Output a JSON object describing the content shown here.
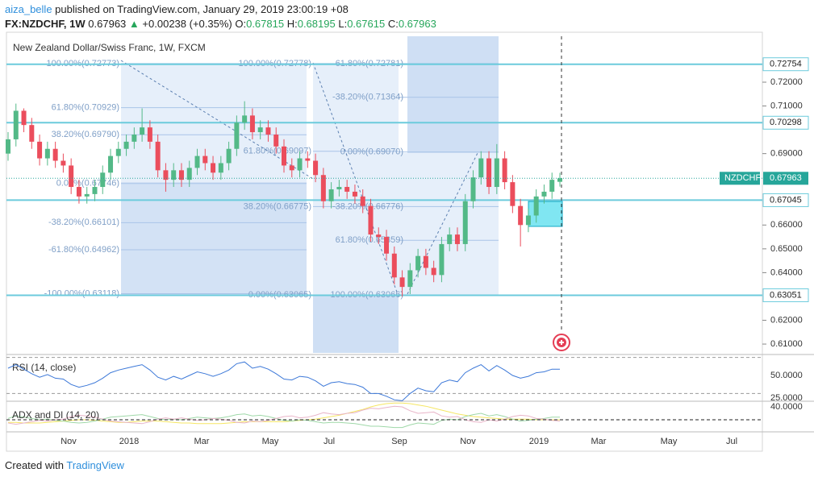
{
  "header": {
    "author": "aiza_belle",
    "published": "published on TradingView.com, January 29, 2019 23:00:19 +08",
    "symbol": "FX:NZDCHF, 1W",
    "last": "0.67963",
    "arrow": "▲",
    "change": "+0.00238 (+0.35%)",
    "ohlc": [
      {
        "key": "O:",
        "value": "0.67815"
      },
      {
        "key": "H:",
        "value": "0.68195"
      },
      {
        "key": "L:",
        "value": "0.67615"
      },
      {
        "key": "C:",
        "value": "0.67963"
      }
    ]
  },
  "footer": {
    "created": "Created with",
    "brand": "TradingView"
  },
  "chart_data": {
    "type": "candlestick",
    "legend": "New Zealand Dollar/Swiss Franc, 1W, FXCM",
    "color_up": "#53b987",
    "color_down": "#eb4d5c",
    "open": [
      0.69,
      0.696,
      0.708,
      0.702,
      0.695,
      0.688,
      0.692,
      0.687,
      0.685,
      0.676,
      0.672,
      0.673,
      0.676,
      0.682,
      0.689,
      0.692,
      0.695,
      0.698,
      0.701,
      0.695,
      0.683,
      0.679,
      0.683,
      0.679,
      0.684,
      0.689,
      0.686,
      0.682,
      0.686,
      0.692,
      0.703,
      0.706,
      0.699,
      0.701,
      0.698,
      0.693,
      0.685,
      0.683,
      0.688,
      0.687,
      0.681,
      0.67,
      0.675,
      0.676,
      0.674,
      0.672,
      0.668,
      0.656,
      0.655,
      0.648,
      0.638,
      0.634,
      0.641,
      0.647,
      0.642,
      0.639,
      0.652,
      0.656,
      0.652,
      0.67,
      0.68,
      0.688,
      0.676,
      0.688,
      0.678,
      0.668,
      0.66,
      0.664,
      0.672,
      0.674,
      0.67815
    ],
    "high": [
      0.699,
      0.711,
      0.709,
      0.705,
      0.698,
      0.695,
      0.695,
      0.69,
      0.688,
      0.679,
      0.676,
      0.679,
      0.685,
      0.692,
      0.695,
      0.698,
      0.701,
      0.709,
      0.704,
      0.698,
      0.686,
      0.686,
      0.686,
      0.687,
      0.692,
      0.692,
      0.689,
      0.689,
      0.695,
      0.706,
      0.712,
      0.709,
      0.704,
      0.704,
      0.701,
      0.696,
      0.688,
      0.691,
      0.691,
      0.69,
      0.684,
      0.678,
      0.679,
      0.679,
      0.677,
      0.675,
      0.671,
      0.659,
      0.658,
      0.651,
      0.641,
      0.644,
      0.65,
      0.65,
      0.645,
      0.655,
      0.659,
      0.659,
      0.673,
      0.683,
      0.691,
      0.691,
      0.694,
      0.691,
      0.681,
      0.671,
      0.667,
      0.675,
      0.677,
      0.682,
      0.68195
    ],
    "low": [
      0.687,
      0.693,
      0.699,
      0.692,
      0.685,
      0.685,
      0.684,
      0.682,
      0.673,
      0.669,
      0.669,
      0.67,
      0.673,
      0.679,
      0.686,
      0.689,
      0.692,
      0.695,
      0.692,
      0.68,
      0.674,
      0.676,
      0.676,
      0.676,
      0.681,
      0.683,
      0.679,
      0.679,
      0.683,
      0.689,
      0.7,
      0.696,
      0.696,
      0.695,
      0.69,
      0.682,
      0.68,
      0.68,
      0.684,
      0.678,
      0.667,
      0.667,
      0.672,
      0.671,
      0.669,
      0.665,
      0.653,
      0.652,
      0.645,
      0.635,
      0.63,
      0.631,
      0.638,
      0.639,
      0.636,
      0.636,
      0.649,
      0.649,
      0.649,
      0.667,
      0.677,
      0.673,
      0.673,
      0.675,
      0.665,
      0.651,
      0.657,
      0.661,
      0.669,
      0.671,
      0.67615
    ],
    "close": [
      0.696,
      0.708,
      0.702,
      0.695,
      0.688,
      0.692,
      0.687,
      0.685,
      0.676,
      0.672,
      0.673,
      0.676,
      0.682,
      0.689,
      0.692,
      0.695,
      0.698,
      0.701,
      0.695,
      0.683,
      0.679,
      0.683,
      0.679,
      0.684,
      0.689,
      0.686,
      0.682,
      0.686,
      0.692,
      0.703,
      0.706,
      0.699,
      0.701,
      0.698,
      0.693,
      0.685,
      0.683,
      0.688,
      0.687,
      0.681,
      0.67,
      0.675,
      0.676,
      0.674,
      0.672,
      0.668,
      0.656,
      0.655,
      0.648,
      0.638,
      0.634,
      0.641,
      0.647,
      0.642,
      0.639,
      0.652,
      0.656,
      0.652,
      0.67,
      0.68,
      0.688,
      0.676,
      0.688,
      0.678,
      0.668,
      0.66,
      0.664,
      0.672,
      0.674,
      0.679,
      0.67963
    ],
    "yticks": [
      {
        "value": 0.61,
        "label": "0.61000"
      },
      {
        "value": 0.62,
        "label": "0.62000"
      },
      {
        "value": 0.64,
        "label": "0.64000"
      },
      {
        "value": 0.65,
        "label": "0.65000"
      },
      {
        "value": 0.66,
        "label": "0.66000"
      },
      {
        "value": 0.69,
        "label": "0.69000"
      },
      {
        "value": 0.71,
        "label": "0.71000"
      },
      {
        "value": 0.72,
        "label": "0.72000"
      }
    ],
    "price_lines": [
      0.72754,
      0.70298,
      0.67045,
      0.63051
    ],
    "last_price": {
      "name": "NZDCHF",
      "value": 0.67963
    },
    "fibs": [
      {
        "levels": [
          {
            "label": "100.00%(0.72773)",
            "value": 0.72773
          },
          {
            "label": "61.80%(0.70929)",
            "value": 0.70929
          },
          {
            "label": "38.20%(0.69790)",
            "value": 0.6979
          },
          {
            "label": "0.00%(0.67746)",
            "value": 0.67746
          },
          {
            "label": "-38.20%(0.66101)",
            "value": 0.66101
          },
          {
            "label": "-61.80%(0.64962)",
            "value": 0.64962
          },
          {
            "label": "-100.00%(0.63118)",
            "value": 0.63118
          }
        ]
      },
      {
        "levels": [
          {
            "label": "100.00%(0.72778)",
            "value": 0.72778
          },
          {
            "label": "61.80%(0.69097)",
            "value": 0.69097
          },
          {
            "label": "38.20%(0.66775)",
            "value": 0.66775
          },
          {
            "label": "0.00%(0.63065)",
            "value": 0.63065
          }
        ]
      },
      {
        "levels": [
          {
            "label": "61.80%(0.72781)",
            "value": 0.72781
          },
          {
            "label": "-38.20%(0.71364)",
            "value": 0.71364
          },
          {
            "label": "0.00%(0.69070)",
            "value": 0.6907
          },
          {
            "label": "-38.20%(0.66776)",
            "value": 0.66776
          },
          {
            "label": "61.80%(0.65359)",
            "value": 0.65359
          },
          {
            "label": "100.00%(0.63066)",
            "value": 0.63066
          }
        ]
      }
    ],
    "x_labels": [
      "Nov",
      "2018",
      "Mar",
      "May",
      "Jul",
      "Sep",
      "Nov",
      "2019",
      "Mar",
      "May",
      "Jul"
    ],
    "rsi": {
      "title": "RSI (14, close)",
      "color": "#3c78d8",
      "levels": [
        70,
        30
      ],
      "yticks": [
        {
          "value": 50,
          "label": "50.0000"
        },
        {
          "value": 25,
          "label": "25.0000"
        }
      ],
      "values": [
        58,
        62,
        57,
        52,
        48,
        51,
        47,
        46,
        40,
        37,
        39,
        42,
        47,
        53,
        56,
        58,
        60,
        62,
        56,
        48,
        45,
        49,
        46,
        50,
        54,
        52,
        49,
        52,
        56,
        63,
        65,
        58,
        60,
        57,
        52,
        46,
        45,
        49,
        48,
        44,
        38,
        42,
        43,
        41,
        40,
        37,
        30,
        30,
        27,
        23,
        22,
        30,
        36,
        33,
        32,
        42,
        45,
        43,
        53,
        58,
        62,
        55,
        61,
        56,
        50,
        47,
        49,
        53,
        54,
        57,
        57
      ]
    },
    "adx": {
      "title": "ADX and DI (14, 20)",
      "level": 20,
      "yticks": [
        {
          "value": 40,
          "label": "40.0000"
        }
      ],
      "series": [
        {
          "color": "#f5e663",
          "values": [
            16,
            16,
            15,
            15,
            15,
            16,
            17,
            18,
            19,
            20,
            20,
            19,
            18,
            17,
            16,
            16,
            17,
            18,
            18,
            18,
            17,
            16,
            15,
            15,
            14,
            14,
            14,
            14,
            15,
            16,
            17,
            17,
            17,
            17,
            17,
            17,
            18,
            19,
            20,
            21,
            23,
            25,
            27,
            30,
            33,
            36,
            40,
            43,
            45,
            46,
            46,
            45,
            43,
            41,
            38,
            35,
            32,
            29,
            27,
            25,
            24,
            23,
            22,
            21,
            21,
            21,
            21,
            20,
            20,
            20,
            20
          ]
        },
        {
          "color": "#9fd8a8",
          "values": [
            22,
            26,
            24,
            22,
            20,
            21,
            19,
            18,
            16,
            15,
            16,
            18,
            21,
            24,
            25,
            26,
            27,
            28,
            25,
            22,
            20,
            21,
            20,
            22,
            24,
            23,
            22,
            23,
            25,
            28,
            29,
            26,
            27,
            25,
            22,
            19,
            18,
            20,
            19,
            17,
            15,
            16,
            16,
            15,
            14,
            12,
            10,
            10,
            9,
            8,
            8,
            12,
            15,
            14,
            13,
            19,
            21,
            20,
            25,
            28,
            30,
            26,
            28,
            25,
            21,
            18,
            19,
            21,
            22,
            24,
            24
          ]
        },
        {
          "color": "#e8b4c8",
          "values": [
            15,
            13,
            15,
            17,
            19,
            18,
            20,
            21,
            25,
            27,
            26,
            24,
            21,
            18,
            17,
            16,
            15,
            14,
            17,
            21,
            23,
            21,
            23,
            21,
            19,
            20,
            22,
            21,
            19,
            16,
            15,
            18,
            17,
            19,
            22,
            25,
            26,
            23,
            24,
            27,
            31,
            29,
            28,
            30,
            31,
            35,
            38,
            37,
            39,
            41,
            40,
            34,
            30,
            31,
            32,
            26,
            24,
            25,
            20,
            17,
            16,
            20,
            18,
            21,
            25,
            27,
            26,
            22,
            21,
            19,
            18
          ]
        }
      ]
    }
  }
}
